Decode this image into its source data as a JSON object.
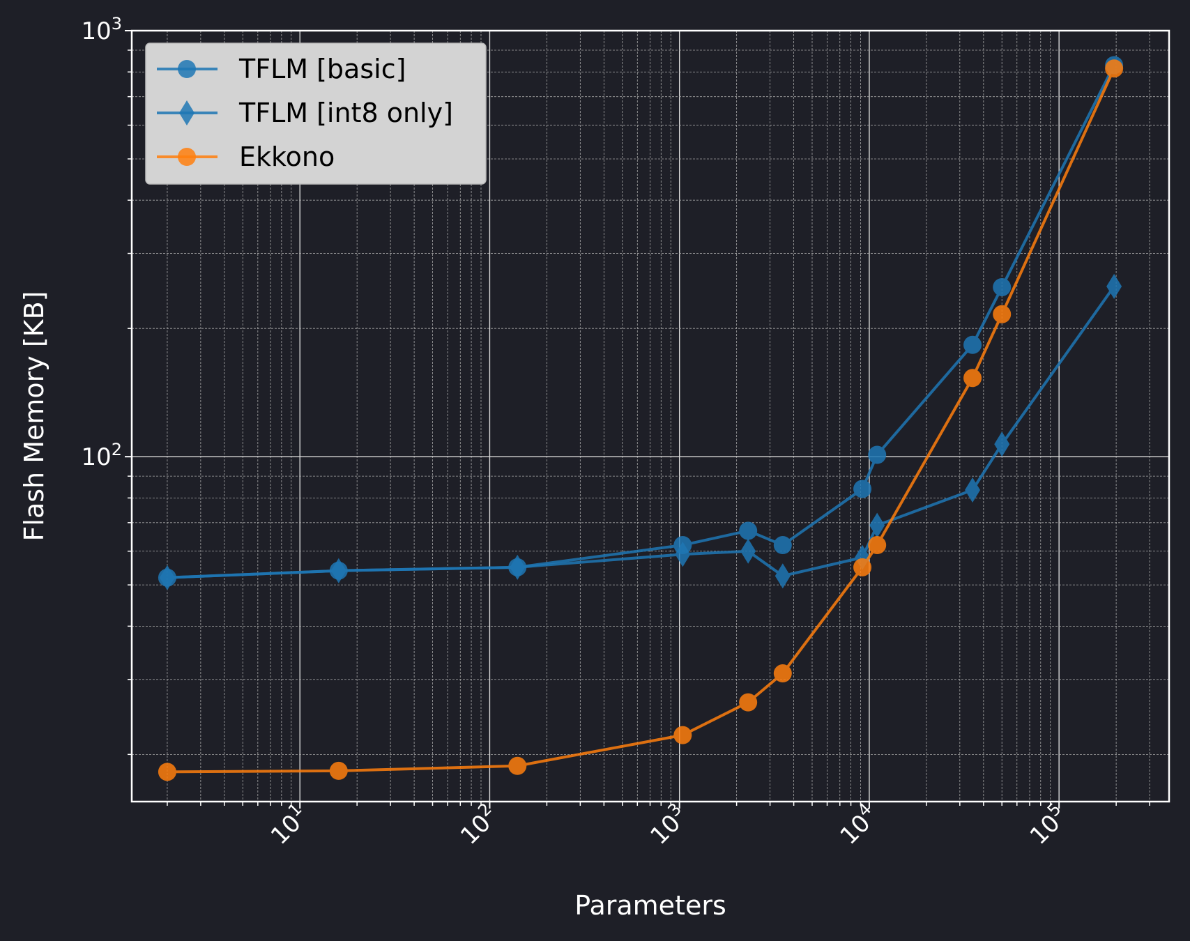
{
  "chart_data": {
    "type": "line",
    "xlabel": "Parameters",
    "ylabel": "Flash Memory [KB]",
    "xscale": "log",
    "yscale": "log",
    "xlim": [
      1.3,
      380000
    ],
    "ylim": [
      15.5,
      1000
    ],
    "grid": true,
    "legend_position": "top-left",
    "x_tick_labels": [
      {
        "value": 10,
        "base": "10",
        "exp": "1"
      },
      {
        "value": 100,
        "base": "10",
        "exp": "2"
      },
      {
        "value": 1000,
        "base": "10",
        "exp": "3"
      },
      {
        "value": 10000,
        "base": "10",
        "exp": "4"
      },
      {
        "value": 100000,
        "base": "10",
        "exp": "5"
      }
    ],
    "y_tick_labels": [
      {
        "value": 100,
        "base": "10",
        "exp": "2"
      },
      {
        "value": 1000,
        "base": "10",
        "exp": "3"
      }
    ],
    "series": [
      {
        "name": "TFLM [basic]",
        "color": "#1f77b4",
        "marker": "circle",
        "x": [
          2,
          16,
          140,
          1040,
          2300,
          3500,
          9200,
          11000,
          35000,
          50000,
          195000
        ],
        "y": [
          52,
          54,
          55,
          62,
          67,
          62,
          84,
          101,
          183,
          250,
          830
        ]
      },
      {
        "name": "TFLM [int8 only]",
        "color": "#1f77b4",
        "marker": "diamond",
        "x": [
          2,
          16,
          140,
          1040,
          2300,
          3500,
          9200,
          11000,
          35000,
          50000,
          195000
        ],
        "y": [
          52,
          54,
          55,
          59,
          60,
          52.5,
          58,
          69,
          83.5,
          107,
          251
        ]
      },
      {
        "name": "Ekkono",
        "color": "#ff7f0e",
        "marker": "circle",
        "x": [
          2,
          16,
          140,
          1040,
          2300,
          3500,
          9200,
          11000,
          35000,
          50000,
          195000
        ],
        "y": [
          18.2,
          18.3,
          18.8,
          22.2,
          26.5,
          31,
          55,
          62,
          153,
          216,
          815
        ]
      }
    ]
  }
}
